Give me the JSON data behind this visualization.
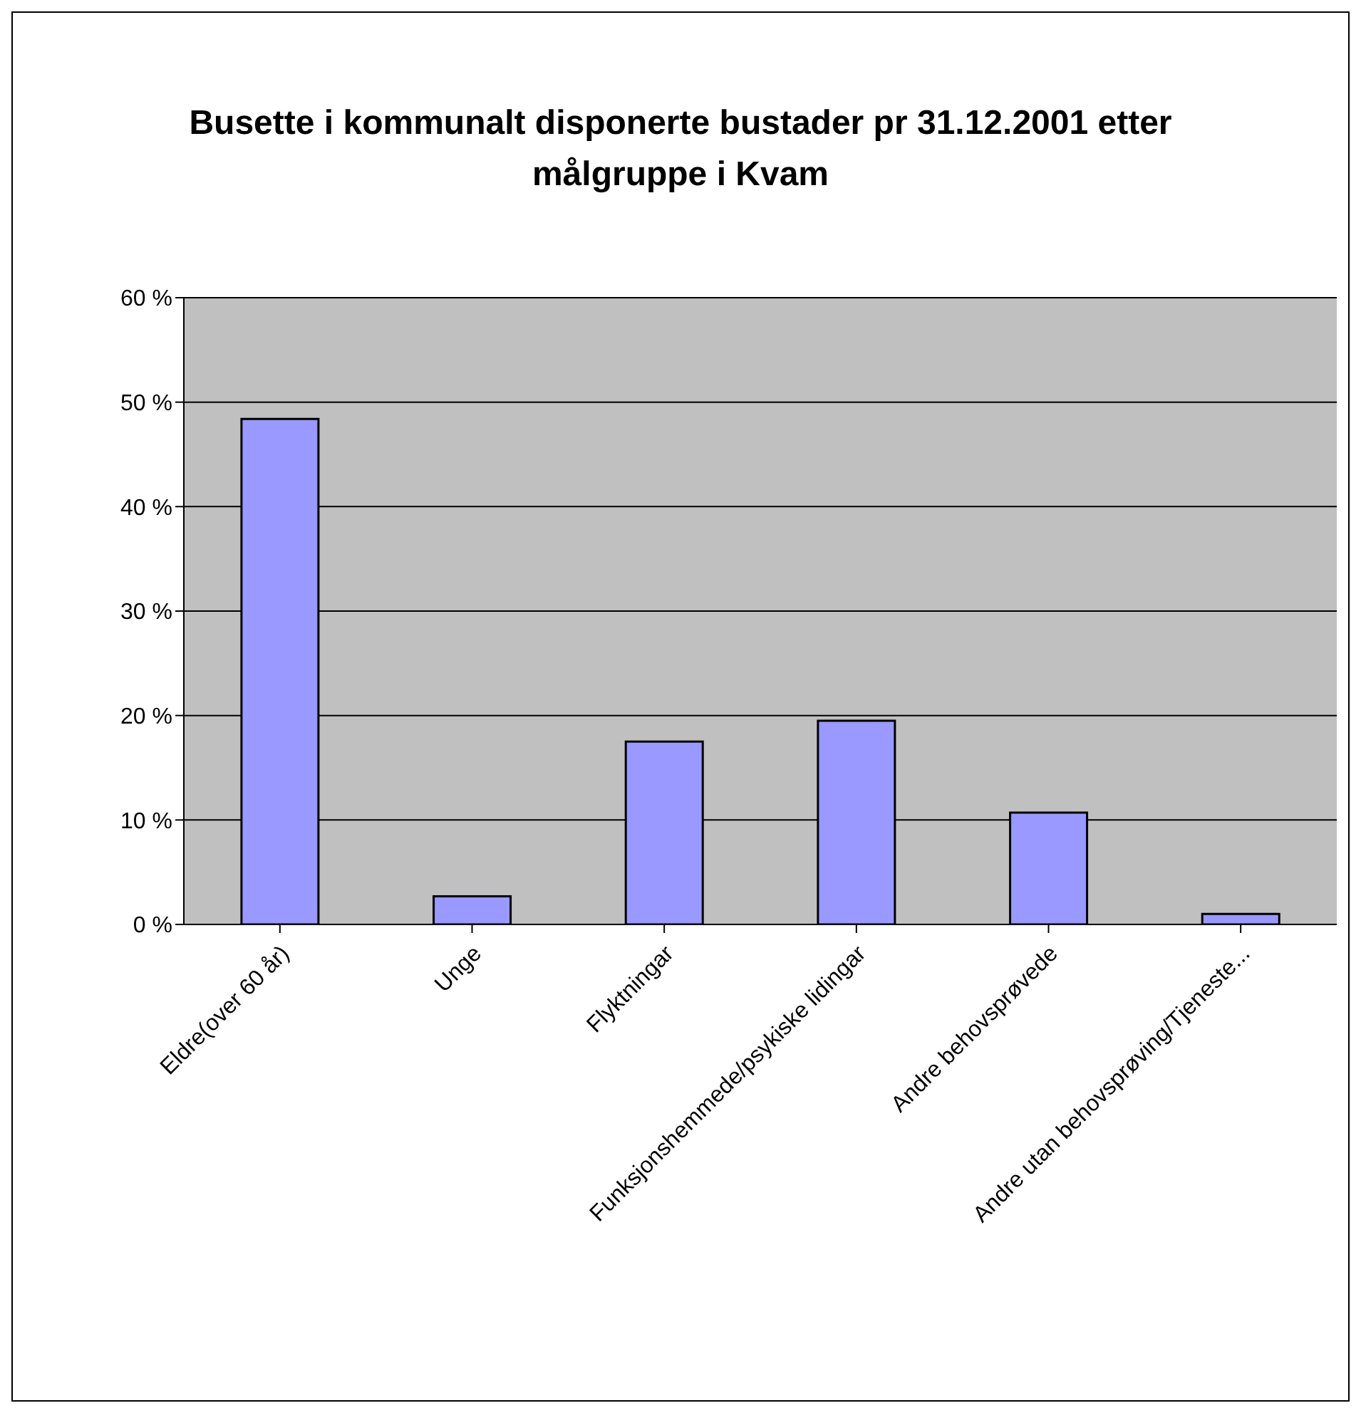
{
  "chart_data": {
    "type": "bar",
    "title": "Busette i kommunalt disponerte bustader pr 31.12.2001 etter målgruppe i Kvam",
    "categories": [
      "Eldre(over 60 år)",
      "Unge",
      "Flyktningar",
      "Funksjonshemmede/psykiske lidingar",
      "Andre behovsprøvede",
      "Andre utan behovsprøving/Tjeneste..."
    ],
    "values": [
      48.4,
      2.7,
      17.5,
      19.5,
      10.7,
      1.0
    ],
    "color": "#9999ff",
    "ylim": [
      0,
      60
    ],
    "yticks": [
      {
        "value": 0,
        "label": "0 %"
      },
      {
        "value": 10,
        "label": "10 %"
      },
      {
        "value": 20,
        "label": "20 %"
      },
      {
        "value": 30,
        "label": "30 %"
      },
      {
        "value": 40,
        "label": "40 %"
      },
      {
        "value": 50,
        "label": "50 %"
      },
      {
        "value": 60,
        "label": "60 %"
      }
    ],
    "grid": "y",
    "legend": false
  }
}
